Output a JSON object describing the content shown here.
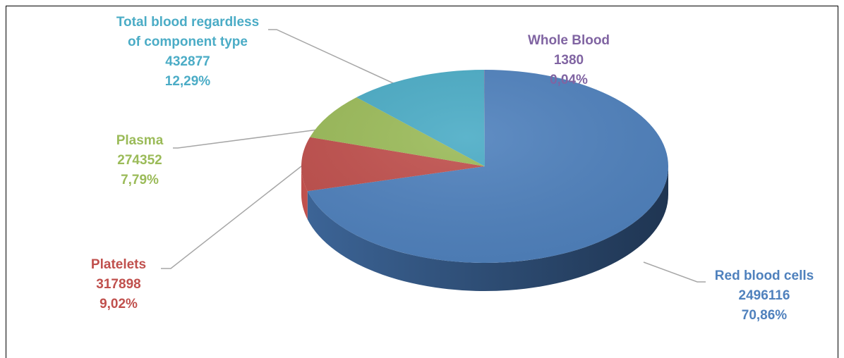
{
  "chart_data": {
    "type": "pie",
    "style": "3d",
    "title": "",
    "legend": "none",
    "slices": [
      {
        "key": "red",
        "label": "Red blood cells",
        "value": 2496116,
        "percent": "70,86%",
        "color": "#4f81bd"
      },
      {
        "key": "platelets",
        "label": "Platelets",
        "value": 317898,
        "percent": "9,02%",
        "color": "#c0504d"
      },
      {
        "key": "plasma",
        "label": "Plasma",
        "value": 274352,
        "percent": "7,79%",
        "color": "#9bbb59"
      },
      {
        "key": "total",
        "label_lines": [
          "Total blood regardless",
          "of component type"
        ],
        "value": 432877,
        "percent": "12,29%",
        "color": "#4bacc6"
      },
      {
        "key": "whole",
        "label": "Whole Blood",
        "value": 1380,
        "percent": "0,04%",
        "color": "#8064a2"
      }
    ],
    "leader_line_color": "#a6a6a6"
  }
}
